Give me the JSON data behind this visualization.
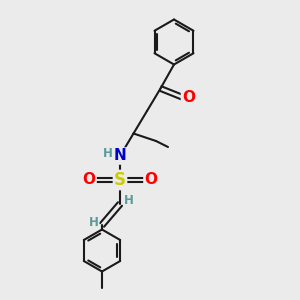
{
  "bg_color": "#ebebeb",
  "bond_color": "#1a1a1a",
  "atom_colors": {
    "O": "#ff0000",
    "N": "#0000cc",
    "S": "#cccc00",
    "H": "#5a9a9a",
    "C": "#1a1a1a"
  },
  "bond_lw": 1.5,
  "font_size_atom": 10,
  "font_size_h": 8.5
}
